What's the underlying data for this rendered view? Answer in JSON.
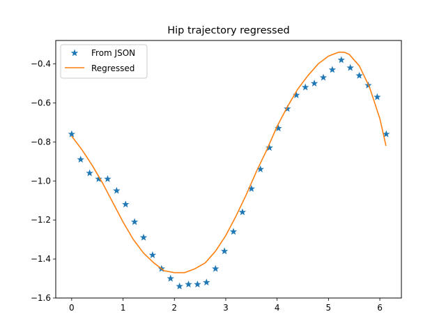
{
  "chart_data": {
    "type": "line",
    "title": "Hip trajectory regressed",
    "xlabel": "",
    "ylabel": "",
    "xlim": [
      -0.31,
      6.42
    ],
    "ylim": [
      -1.6,
      -0.28
    ],
    "xticks": [
      0,
      1,
      2,
      3,
      4,
      5,
      6
    ],
    "xtick_labels": [
      "0",
      "1",
      "2",
      "3",
      "4",
      "5",
      "6"
    ],
    "yticks": [
      -1.6,
      -1.4,
      -1.2,
      -1.0,
      -0.8,
      -0.6,
      -0.4
    ],
    "ytick_labels": [
      "−1.6",
      "−1.4",
      "−1.2",
      "−1.0",
      "−0.8",
      "−0.6",
      "−0.4"
    ],
    "grid": false,
    "legend_position": "top-left",
    "series": [
      {
        "name": "From JSON",
        "style": "star-markers",
        "color": "#1f77b4",
        "x": [
          0.0,
          0.175,
          0.35,
          0.525,
          0.7,
          0.875,
          1.05,
          1.225,
          1.4,
          1.575,
          1.75,
          1.925,
          2.1,
          2.275,
          2.45,
          2.625,
          2.8,
          2.975,
          3.15,
          3.325,
          3.5,
          3.675,
          3.85,
          4.025,
          4.2,
          4.375,
          4.55,
          4.725,
          4.9,
          5.075,
          5.25,
          5.425,
          5.6,
          5.775,
          5.95,
          6.125
        ],
        "y": [
          -0.76,
          -0.89,
          -0.96,
          -0.99,
          -0.99,
          -1.05,
          -1.12,
          -1.21,
          -1.29,
          -1.38,
          -1.45,
          -1.5,
          -1.54,
          -1.53,
          -1.53,
          -1.52,
          -1.45,
          -1.36,
          -1.26,
          -1.16,
          -1.04,
          -0.94,
          -0.83,
          -0.73,
          -0.63,
          -0.56,
          -0.52,
          -0.5,
          -0.47,
          -0.43,
          -0.38,
          -0.42,
          -0.46,
          -0.51,
          -0.57,
          -0.76
        ]
      },
      {
        "name": "Regressed",
        "style": "line",
        "color": "#ff7f0e",
        "x": [
          0.0,
          0.2,
          0.4,
          0.6,
          0.8,
          1.0,
          1.2,
          1.4,
          1.6,
          1.8,
          2.0,
          2.2,
          2.4,
          2.6,
          2.8,
          3.0,
          3.2,
          3.4,
          3.6,
          3.8,
          4.0,
          4.2,
          4.4,
          4.6,
          4.8,
          5.0,
          5.2,
          5.3,
          5.4,
          5.6,
          5.8,
          6.0,
          6.12
        ],
        "y": [
          -0.77,
          -0.84,
          -0.92,
          -1.01,
          -1.11,
          -1.21,
          -1.3,
          -1.37,
          -1.42,
          -1.46,
          -1.47,
          -1.47,
          -1.45,
          -1.42,
          -1.36,
          -1.28,
          -1.18,
          -1.07,
          -0.95,
          -0.84,
          -0.72,
          -0.62,
          -0.53,
          -0.46,
          -0.4,
          -0.36,
          -0.34,
          -0.34,
          -0.35,
          -0.41,
          -0.52,
          -0.68,
          -0.82
        ]
      }
    ]
  }
}
